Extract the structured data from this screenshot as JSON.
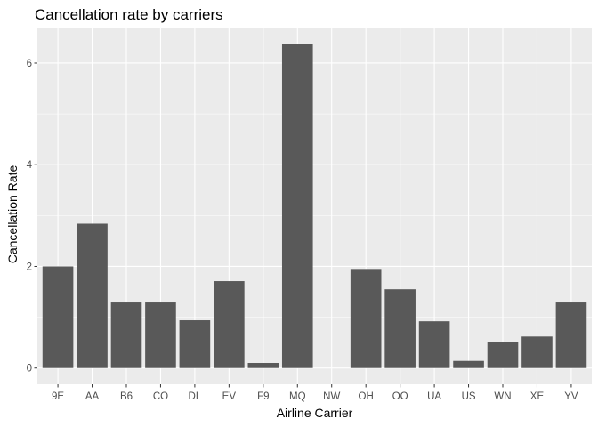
{
  "chart_data": {
    "type": "bar",
    "title": "Cancellation rate by carriers",
    "xlabel": "Airline Carrier",
    "ylabel": "Cancellation Rate",
    "categories": [
      "9E",
      "AA",
      "B6",
      "CO",
      "DL",
      "EV",
      "F9",
      "MQ",
      "NW",
      "OH",
      "OO",
      "UA",
      "US",
      "WN",
      "XE",
      "YV"
    ],
    "values": [
      2.0,
      2.84,
      1.29,
      1.29,
      0.94,
      1.71,
      0.1,
      6.37,
      0.0,
      1.95,
      1.55,
      0.92,
      0.14,
      0.52,
      0.62,
      1.29
    ],
    "ylim": [
      -0.32,
      6.7
    ],
    "y_ticks": [
      0,
      2,
      4,
      6
    ],
    "y_tick_labels": [
      "0",
      "2",
      "4",
      "6"
    ],
    "bar_color": "#595959",
    "panel_color": "#ebebeb",
    "grid": true,
    "legend": "none"
  }
}
